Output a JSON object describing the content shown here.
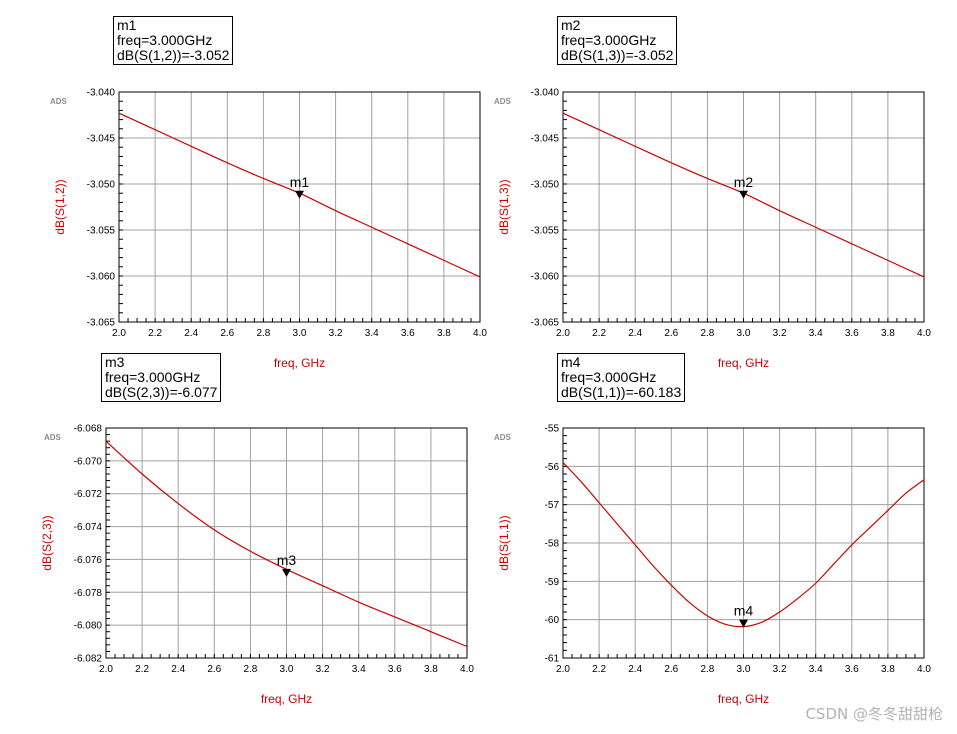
{
  "watermark": "CSDN @冬冬甜甜枪",
  "colors": {
    "trace": "#cc0000",
    "axis_label": "#cc0000",
    "grid": "#a0a0a0",
    "frame": "#000000",
    "ads": "#8c8c8c"
  },
  "chart_data": [
    {
      "type": "line",
      "ads_label": "ADS",
      "xlabel": "freq, GHz",
      "ylabel": "dB(S(1,2))",
      "xlim": [
        2.0,
        4.0
      ],
      "ylim": [
        -3.065,
        -3.04
      ],
      "xticks": [
        "2.0",
        "2.2",
        "2.4",
        "2.6",
        "2.8",
        "3.0",
        "3.2",
        "3.4",
        "3.6",
        "3.8",
        "4.0"
      ],
      "yticks": [
        "-3.040",
        "-3.045",
        "-3.050",
        "-3.055",
        "-3.060",
        "-3.065"
      ],
      "x": [
        2.0,
        2.2,
        2.4,
        2.6,
        2.8,
        3.0,
        3.2,
        3.4,
        3.6,
        3.8,
        4.0
      ],
      "y": [
        -3.0423,
        -3.0441,
        -3.0459,
        -3.0477,
        -3.0494,
        -3.051,
        -3.0529,
        -3.0547,
        -3.0565,
        -3.0583,
        -3.0601
      ],
      "marker": {
        "name": "m1",
        "x": 3.0,
        "y": -3.0515,
        "line1": "m1",
        "line2": "freq=3.000GHz",
        "line3": "dB(S(1,2))=-3.052"
      }
    },
    {
      "type": "line",
      "ads_label": "ADS",
      "xlabel": "freq, GHz",
      "ylabel": "dB(S(1,3))",
      "xlim": [
        2.0,
        4.0
      ],
      "ylim": [
        -3.065,
        -3.04
      ],
      "xticks": [
        "2.0",
        "2.2",
        "2.4",
        "2.6",
        "2.8",
        "3.0",
        "3.2",
        "3.4",
        "3.6",
        "3.8",
        "4.0"
      ],
      "yticks": [
        "-3.040",
        "-3.045",
        "-3.050",
        "-3.055",
        "-3.060",
        "-3.065"
      ],
      "x": [
        2.0,
        2.2,
        2.4,
        2.6,
        2.8,
        3.0,
        3.2,
        3.4,
        3.6,
        3.8,
        4.0
      ],
      "y": [
        -3.0423,
        -3.0441,
        -3.0459,
        -3.0477,
        -3.0494,
        -3.051,
        -3.0529,
        -3.0547,
        -3.0565,
        -3.0583,
        -3.0601
      ],
      "marker": {
        "name": "m2",
        "x": 3.0,
        "y": -3.0515,
        "line1": "m2",
        "line2": "freq=3.000GHz",
        "line3": "dB(S(1,3))=-3.052"
      }
    },
    {
      "type": "line",
      "ads_label": "ADS",
      "xlabel": "freq, GHz",
      "ylabel": "dB(S(2,3))",
      "xlim": [
        2.0,
        4.0
      ],
      "ylim": [
        -6.082,
        -6.068
      ],
      "xticks": [
        "2.0",
        "2.2",
        "2.4",
        "2.6",
        "2.8",
        "3.0",
        "3.2",
        "3.4",
        "3.6",
        "3.8",
        "4.0"
      ],
      "yticks": [
        "-6.068",
        "-6.070",
        "-6.072",
        "-6.074",
        "-6.076",
        "-6.078",
        "-6.080",
        "-6.082"
      ],
      "x": [
        2.0,
        2.2,
        2.4,
        2.6,
        2.8,
        3.0,
        3.2,
        3.4,
        3.6,
        3.8,
        4.0
      ],
      "y": [
        -6.0688,
        -6.0708,
        -6.0726,
        -6.0742,
        -6.0755,
        -6.0766,
        -6.0776,
        -6.0786,
        -6.0795,
        -6.0804,
        -6.0813
      ],
      "marker": {
        "name": "m3",
        "x": 3.0,
        "y": -6.077,
        "line1": "m3",
        "line2": "freq=3.000GHz",
        "line3": "dB(S(2,3))=-6.077"
      }
    },
    {
      "type": "line",
      "ads_label": "ADS",
      "xlabel": "freq, GHz",
      "ylabel": "dB(S(1,1))",
      "xlim": [
        2.0,
        4.0
      ],
      "ylim": [
        -61,
        -55
      ],
      "xticks": [
        "2.0",
        "2.2",
        "2.4",
        "2.6",
        "2.8",
        "3.0",
        "3.2",
        "3.4",
        "3.6",
        "3.8",
        "4.0"
      ],
      "yticks": [
        "-55",
        "-56",
        "-57",
        "-58",
        "-59",
        "-60",
        "-61"
      ],
      "x": [
        2.0,
        2.1,
        2.2,
        2.3,
        2.4,
        2.5,
        2.6,
        2.7,
        2.8,
        2.9,
        3.0,
        3.1,
        3.2,
        3.3,
        3.4,
        3.5,
        3.6,
        3.7,
        3.8,
        3.9,
        4.0
      ],
      "y": [
        -55.9,
        -56.4,
        -56.95,
        -57.5,
        -58.05,
        -58.6,
        -59.1,
        -59.55,
        -59.9,
        -60.12,
        -60.18,
        -60.07,
        -59.8,
        -59.45,
        -59.05,
        -58.55,
        -58.05,
        -57.6,
        -57.15,
        -56.7,
        -56.35
      ],
      "marker": {
        "name": "m4",
        "x": 3.0,
        "y": -60.183,
        "line1": "m4",
        "line2": "freq=3.000GHz",
        "line3": "dB(S(1,1))=-60.183"
      }
    }
  ]
}
